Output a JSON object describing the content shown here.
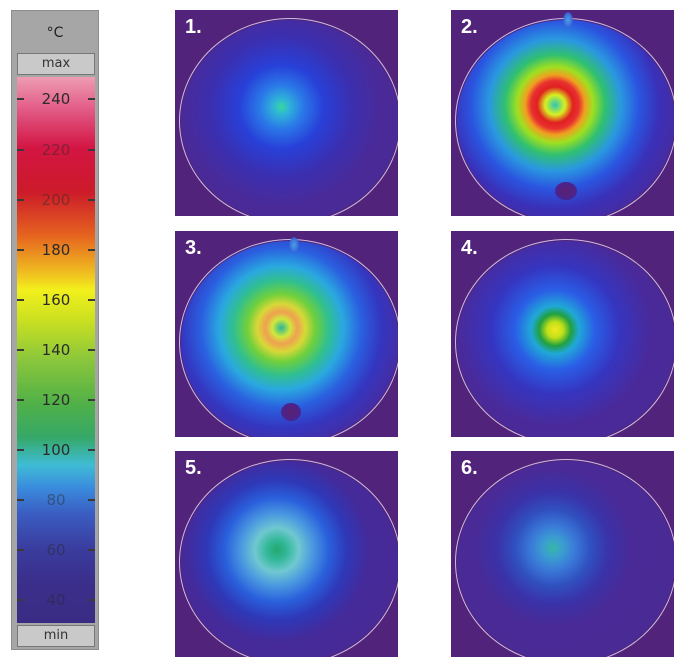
{
  "scale": {
    "unit": "°C",
    "max_label": "max",
    "min_label": "min",
    "ticks": [
      "240",
      "220",
      "200",
      "180",
      "160",
      "140",
      "120",
      "100",
      "80",
      "60",
      "40"
    ]
  },
  "panels": [
    {
      "label": "1."
    },
    {
      "label": "2."
    },
    {
      "label": "3."
    },
    {
      "label": "4."
    },
    {
      "label": "5."
    },
    {
      "label": "6."
    }
  ],
  "colors": {
    "background": "#52237a",
    "rim": "#e1d7f0",
    "scale_frame": "#a6a6a6"
  }
}
